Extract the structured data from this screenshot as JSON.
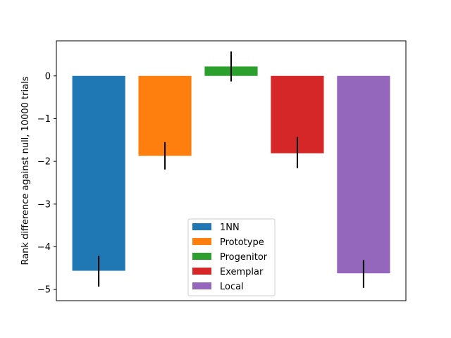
{
  "chart_data": {
    "type": "bar",
    "categories": [
      "1NN",
      "Prototype",
      "Progenitor",
      "Exemplar",
      "Local"
    ],
    "values": [
      -4.56,
      -1.87,
      0.22,
      -1.81,
      -4.62
    ],
    "error_low": [
      -4.93,
      -2.19,
      -0.13,
      -2.16,
      -4.96
    ],
    "error_high": [
      -4.21,
      -1.55,
      0.57,
      -1.43,
      -4.31
    ],
    "colors": [
      "#1f77b4",
      "#ff7f0e",
      "#2ca02c",
      "#d62728",
      "#9467bd"
    ],
    "title": "",
    "xlabel": "",
    "ylabel": "Rank difference against null, 10000 trials",
    "ylim": [
      -5.26,
      0.82
    ],
    "yticks": [
      0,
      -1,
      -2,
      -3,
      -4,
      -5
    ],
    "ytick_labels": [
      "0",
      "−1",
      "−2",
      "−3",
      "−4",
      "−5"
    ],
    "legend_position": "lower center",
    "grid": false
  }
}
